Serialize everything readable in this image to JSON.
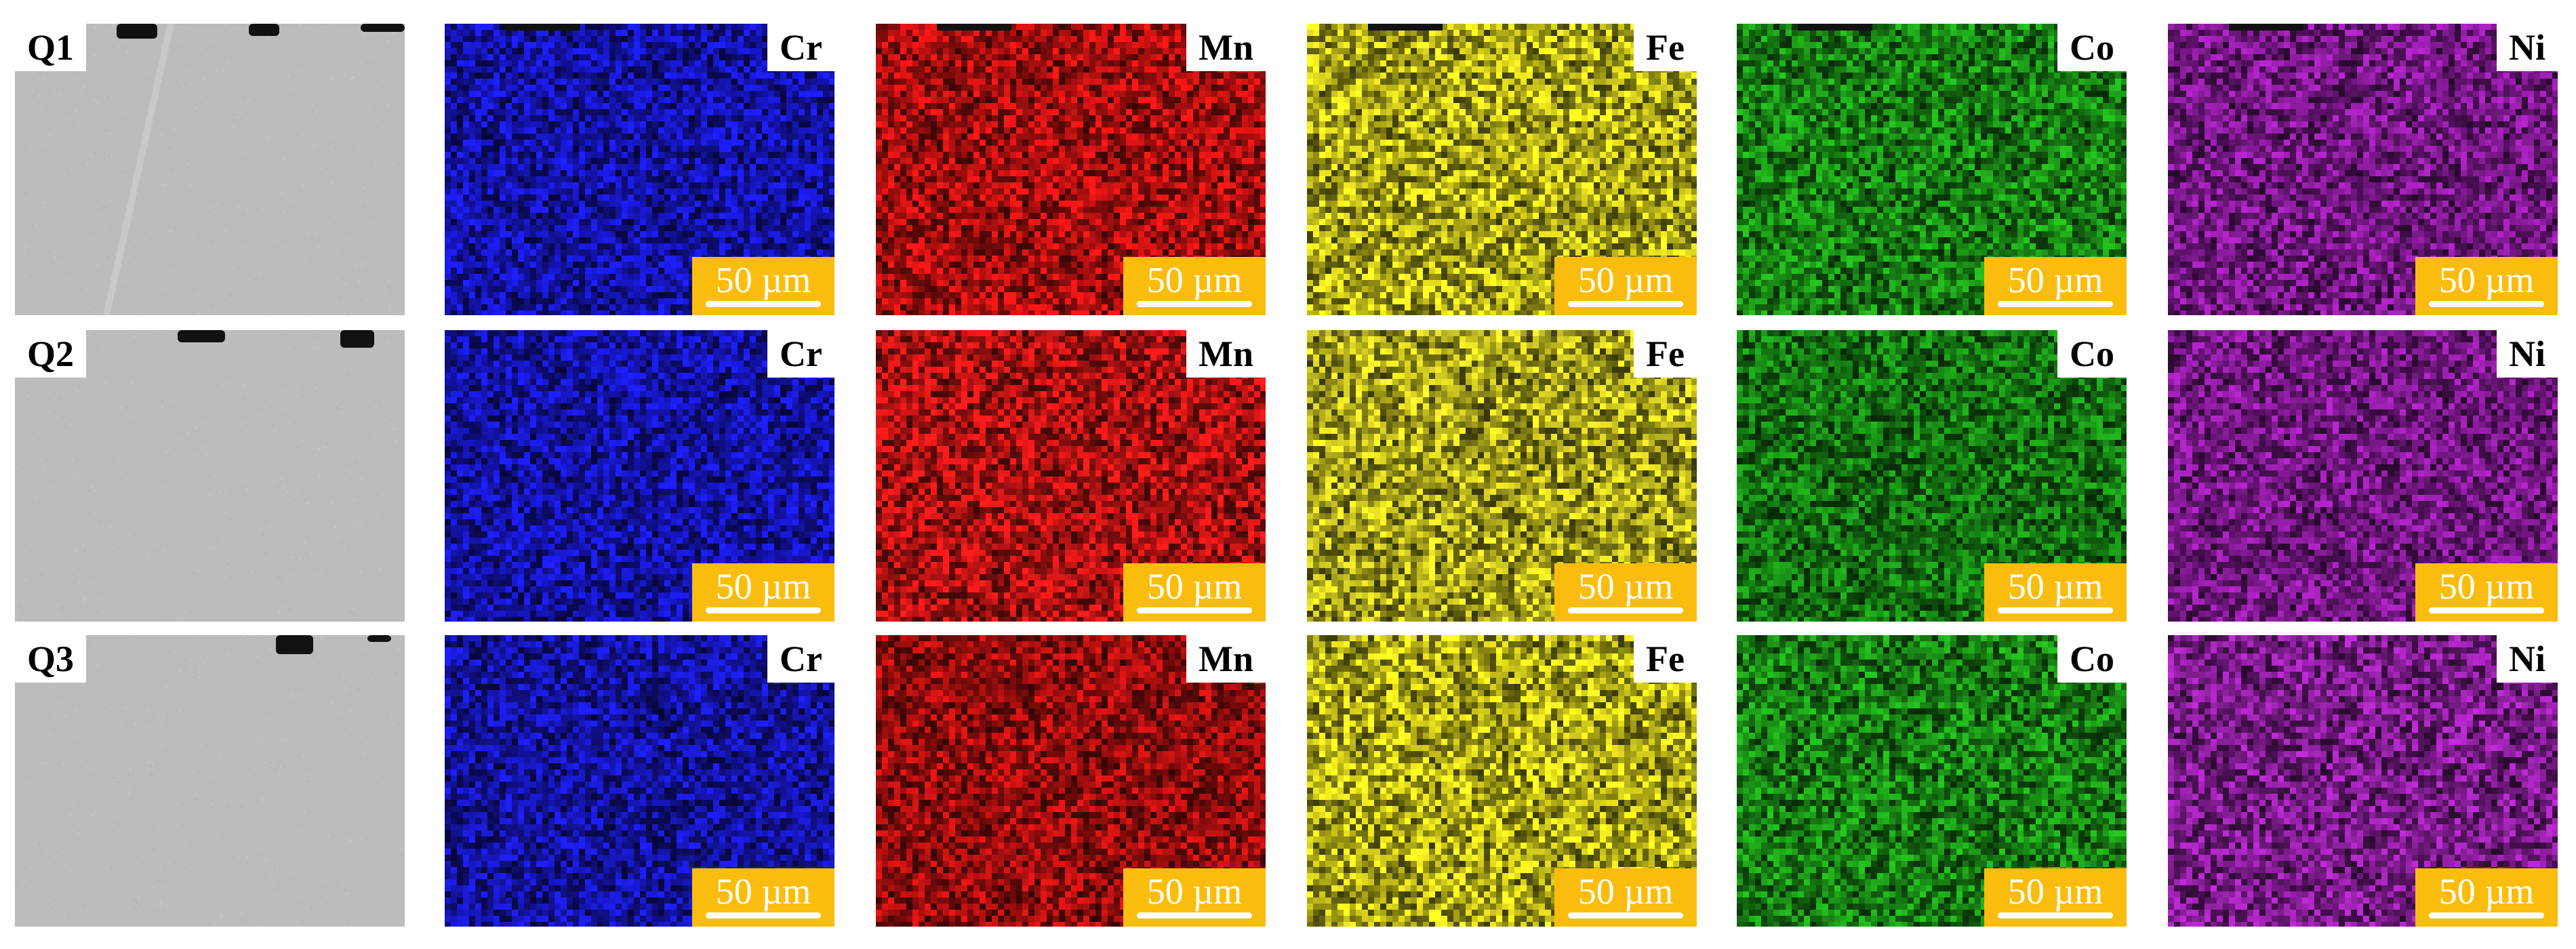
{
  "figure": {
    "rows": [
      {
        "label": "Q1",
        "panels": [
          {
            "type": "sem"
          },
          {
            "type": "map",
            "element": "Cr",
            "color": "#1a1ae0",
            "scale": "50 µm"
          },
          {
            "type": "map",
            "element": "Mn",
            "color": "#e01414",
            "scale": "50 µm"
          },
          {
            "type": "map",
            "element": "Fe",
            "color": "#e6e01e",
            "scale": "50 µm"
          },
          {
            "type": "map",
            "element": "Co",
            "color": "#1fa81a",
            "scale": "50 µm"
          },
          {
            "type": "map",
            "element": "Ni",
            "color": "#9a1fae",
            "scale": "50 µm"
          }
        ]
      },
      {
        "label": "Q2",
        "panels": [
          {
            "type": "sem"
          },
          {
            "type": "map",
            "element": "Cr",
            "color": "#1a1ae0",
            "scale": "50 µm"
          },
          {
            "type": "map",
            "element": "Mn",
            "color": "#e81818",
            "scale": "50 µm"
          },
          {
            "type": "map",
            "element": "Fe",
            "color": "#dcd622",
            "scale": "50 µm"
          },
          {
            "type": "map",
            "element": "Co",
            "color": "#1b9a18",
            "scale": "50 µm"
          },
          {
            "type": "map",
            "element": "Ni",
            "color": "#9a1fae",
            "scale": "50 µm"
          }
        ]
      },
      {
        "label": "Q3",
        "panels": [
          {
            "type": "sem"
          },
          {
            "type": "map",
            "element": "Cr",
            "color": "#1a1ad6",
            "scale": "50 µm"
          },
          {
            "type": "map",
            "element": "Mn",
            "color": "#c81212",
            "scale": "50 µm"
          },
          {
            "type": "map",
            "element": "Fe",
            "color": "#e8e21c",
            "scale": "50 µm"
          },
          {
            "type": "map",
            "element": "Co",
            "color": "#1fa81a",
            "scale": "50 µm"
          },
          {
            "type": "map",
            "element": "Ni",
            "color": "#a224b6",
            "scale": "50 µm"
          }
        ]
      }
    ],
    "sem_color": "#bcbcbc"
  }
}
